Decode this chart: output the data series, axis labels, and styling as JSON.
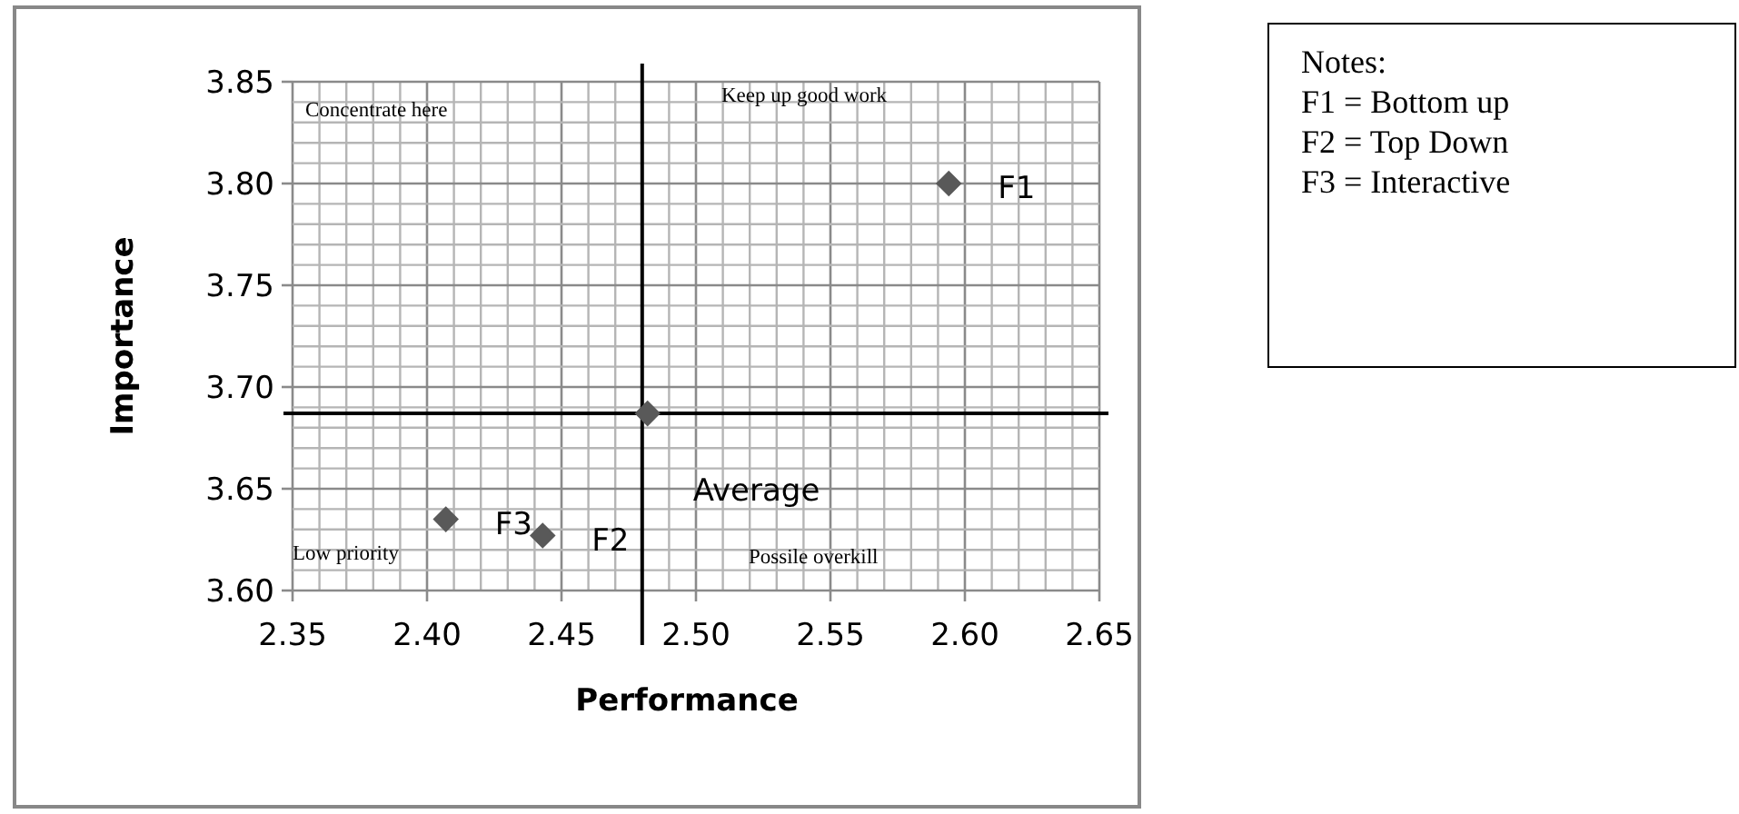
{
  "chart_data": {
    "type": "scatter",
    "xlabel": "Performance",
    "ylabel": "Importance",
    "x": [
      2.594,
      2.443,
      2.407,
      2.482
    ],
    "values": [
      3.8,
      3.627,
      3.635,
      3.687
    ],
    "value_labels": [
      "F1",
      "F2",
      "F3",
      "Average"
    ],
    "color": "#595959",
    "marker": "diamond",
    "xlim": [
      2.35,
      2.65
    ],
    "xticks": [
      {
        "value": 2.35,
        "label": "2.35"
      },
      {
        "value": 2.4,
        "label": "2.40"
      },
      {
        "value": 2.45,
        "label": "2.45"
      },
      {
        "value": 2.5,
        "label": "2.50"
      },
      {
        "value": 2.55,
        "label": "2.55"
      },
      {
        "value": 2.6,
        "label": "2.60"
      },
      {
        "value": 2.65,
        "label": "2.65"
      }
    ],
    "ylim": [
      3.6,
      3.85
    ],
    "yticks": [
      {
        "value": 3.6,
        "label": "3.60"
      },
      {
        "value": 3.65,
        "label": "3.65"
      },
      {
        "value": 3.7,
        "label": "3.70"
      },
      {
        "value": 3.75,
        "label": "3.75"
      },
      {
        "value": 3.8,
        "label": "3.80"
      },
      {
        "value": 3.85,
        "label": "3.85"
      }
    ],
    "grid": true,
    "ref_lines": [
      {
        "axis": "x",
        "value": 2.48,
        "color": "#000000"
      },
      {
        "axis": "y",
        "value": 3.687,
        "color": "#000000"
      }
    ],
    "annotations": [
      "Concentrate here",
      "Keep up good work",
      "Low priority",
      "Possile overkill",
      "Notes:",
      "F1 = Bottom up",
      "F2 = Top Down",
      "F3 = Interactive"
    ]
  }
}
